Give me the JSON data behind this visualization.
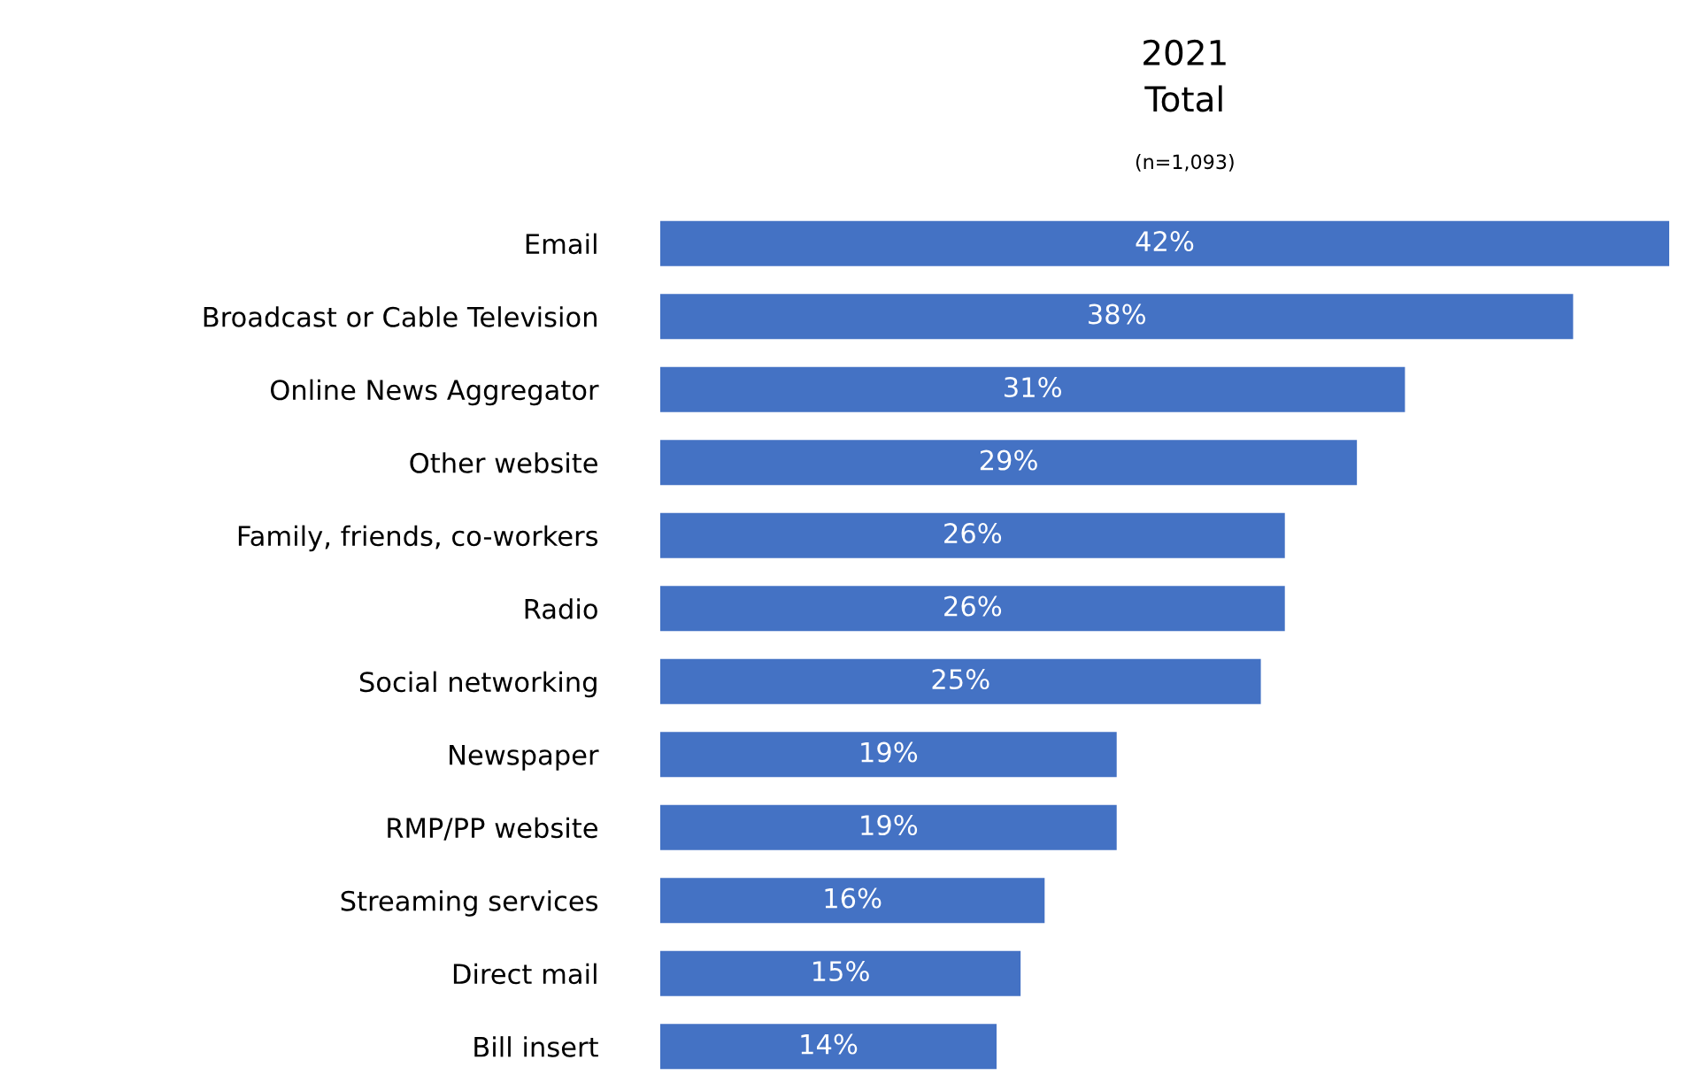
{
  "chart_data": {
    "type": "bar",
    "orientation": "horizontal",
    "title": "2021\nTotal",
    "subtitle": "(n=1,093)",
    "categories": [
      "Email",
      "Broadcast or Cable Television",
      "Online News Aggregator",
      "Other website",
      "Family, friends, co-workers",
      "Radio",
      "Social networking",
      "Newspaper",
      "RMP/PP website",
      "Streaming services",
      "Direct mail",
      "Bill insert"
    ],
    "values": [
      42,
      38,
      31,
      29,
      26,
      26,
      25,
      19,
      19,
      16,
      15,
      14
    ],
    "value_labels": [
      "42%",
      "38%",
      "31%",
      "29%",
      "26%",
      "26%",
      "25%",
      "19%",
      "19%",
      "16%",
      "15%",
      "14%"
    ],
    "color": "#4472c4",
    "grid": false,
    "legend": false
  }
}
